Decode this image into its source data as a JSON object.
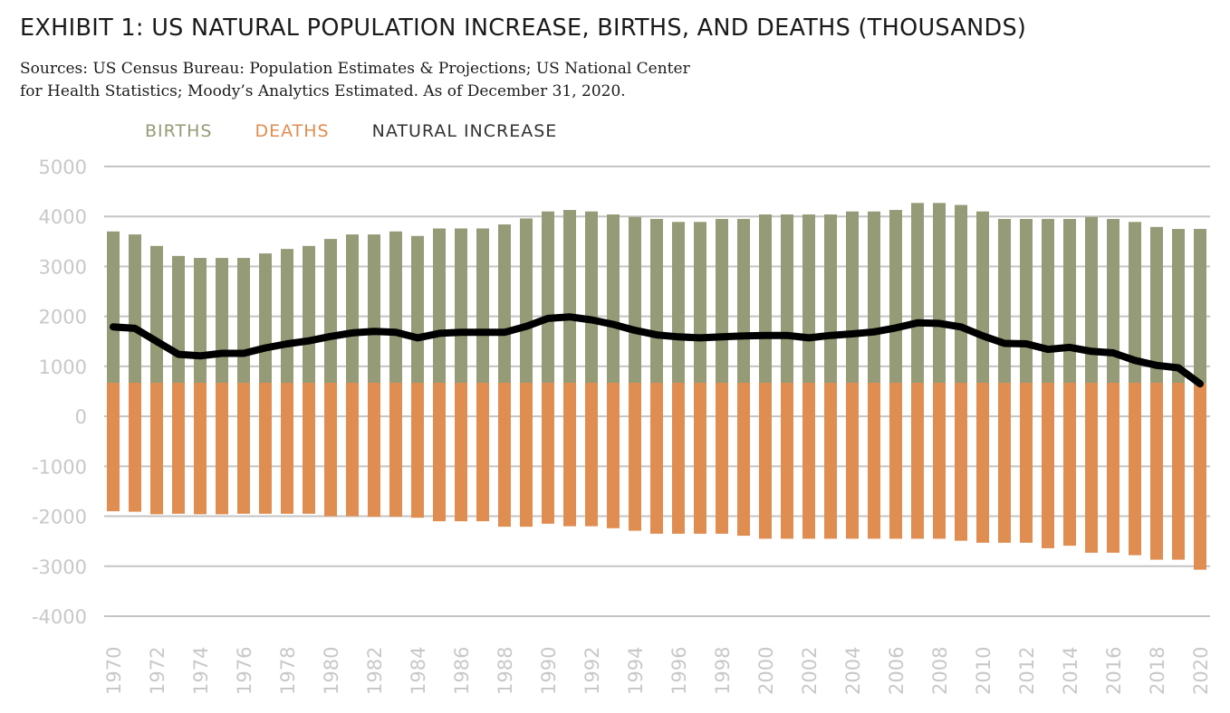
{
  "title": "EXHIBIT 1: US NATURAL POPULATION INCREASE, BIRTHS, AND DEATHS (THOUSANDS)",
  "subtitle_line1": "Sources: US Census Bureau: Population Estimates & Projections; US National Center",
  "subtitle_line2": "for Health Statistics; Moody’s Analytics Estimated. As of December 31, 2020.",
  "colors": {
    "births": "#949b76",
    "deaths": "#e08d51",
    "natural": "#000000",
    "grid": "#c4c4c4",
    "tick": "#c8c8c8"
  },
  "chart_data": {
    "type": "bar",
    "title": "EXHIBIT 1: US NATURAL POPULATION INCREASE, BIRTHS, AND DEATHS (THOUSANDS)",
    "legend_placement": "top-left",
    "grid": true,
    "ylim": [
      -4000,
      5000
    ],
    "yticks": [
      5000,
      4000,
      3000,
      2000,
      1000,
      0,
      -1000,
      -2000,
      -3000,
      -4000
    ],
    "x": [
      1970,
      1971,
      1972,
      1973,
      1974,
      1975,
      1976,
      1977,
      1978,
      1979,
      1980,
      1981,
      1982,
      1983,
      1984,
      1985,
      1986,
      1987,
      1988,
      1989,
      1990,
      1991,
      1992,
      1993,
      1994,
      1995,
      1996,
      1997,
      1998,
      1999,
      2000,
      2001,
      2002,
      2003,
      2004,
      2005,
      2006,
      2007,
      2008,
      2009,
      2010,
      2011,
      2012,
      2013,
      2014,
      2015,
      2016,
      2017,
      2018,
      2019,
      2020
    ],
    "xtick_labels": [
      "1970",
      "1972",
      "1974",
      "1976",
      "1978",
      "1980",
      "1982",
      "1984",
      "1986",
      "1988",
      "1990",
      "1992",
      "1994",
      "1996",
      "1998",
      "2000",
      "2002",
      "2004",
      "2006",
      "2008",
      "2010",
      "2012",
      "2014",
      "2016",
      "2018",
      "2020"
    ],
    "series": [
      {
        "name": "BIRTHS",
        "values": [
          3700,
          3640,
          3410,
          3210,
          3170,
          3170,
          3170,
          3260,
          3350,
          3410,
          3550,
          3640,
          3640,
          3700,
          3610,
          3760,
          3760,
          3760,
          3840,
          3960,
          4100,
          4130,
          4100,
          4040,
          3990,
          3950,
          3890,
          3890,
          3950,
          3950,
          4040,
          4040,
          4040,
          4040,
          4100,
          4100,
          4130,
          4270,
          4270,
          4230,
          4100,
          3950,
          3950,
          3950,
          3950,
          3990,
          3950,
          3890,
          3790,
          3750,
          3750
        ]
      },
      {
        "name": "DEATHS",
        "values": [
          -1900,
          -1910,
          -1960,
          -1950,
          -1960,
          -1960,
          -1950,
          -1950,
          -1950,
          -1950,
          -2000,
          -2000,
          -2010,
          -2010,
          -2030,
          -2100,
          -2100,
          -2100,
          -2210,
          -2210,
          -2150,
          -2200,
          -2200,
          -2240,
          -2290,
          -2350,
          -2350,
          -2350,
          -2350,
          -2390,
          -2450,
          -2450,
          -2450,
          -2450,
          -2450,
          -2450,
          -2450,
          -2450,
          -2450,
          -2490,
          -2530,
          -2530,
          -2530,
          -2640,
          -2590,
          -2730,
          -2730,
          -2780,
          -2870,
          -2870,
          -3070
        ]
      },
      {
        "name": "NATURAL INCREASE",
        "values": [
          1790,
          1760,
          1500,
          1240,
          1210,
          1260,
          1260,
          1370,
          1450,
          1510,
          1600,
          1670,
          1700,
          1680,
          1570,
          1660,
          1680,
          1680,
          1680,
          1800,
          1960,
          1990,
          1930,
          1840,
          1720,
          1630,
          1590,
          1570,
          1590,
          1610,
          1620,
          1620,
          1570,
          1620,
          1650,
          1690,
          1770,
          1870,
          1860,
          1790,
          1610,
          1460,
          1450,
          1340,
          1380,
          1300,
          1270,
          1120,
          1020,
          970,
          650
        ]
      }
    ]
  }
}
